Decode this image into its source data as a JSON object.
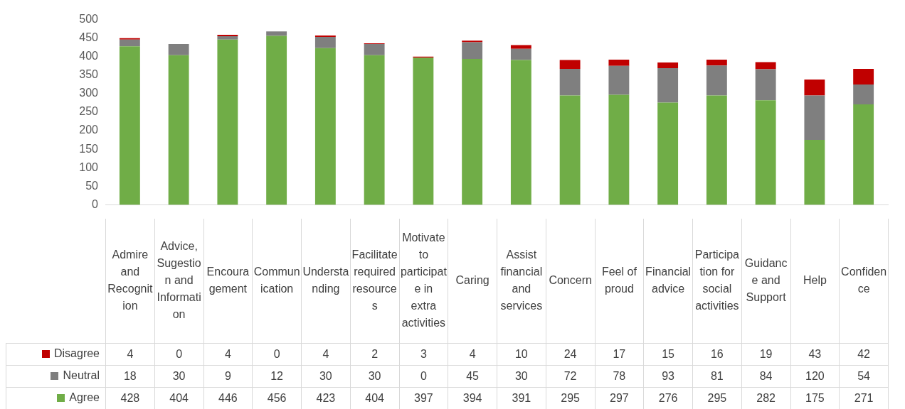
{
  "chart_data": {
    "type": "bar",
    "stacked": true,
    "categories": [
      "Admire and Recognition",
      "Advice, Sugestion and Information",
      "Encouragement",
      "Communication",
      "Understanding",
      "Facilitate required resources",
      "Motivate to participate in extra activities",
      "Caring",
      "Assist financial and services",
      "Concern",
      "Feel of proud",
      "Financial advice",
      "Participation for social activities",
      "Guidance and Support",
      "Help",
      "Confidence"
    ],
    "series": [
      {
        "name": "Agree",
        "color": "#70ad47",
        "values": [
          428,
          404,
          446,
          456,
          423,
          404,
          397,
          394,
          391,
          295,
          297,
          276,
          295,
          282,
          175,
          271
        ]
      },
      {
        "name": "Neutral",
        "color": "#7f7f7f",
        "values": [
          18,
          30,
          9,
          12,
          30,
          30,
          0,
          45,
          30,
          72,
          78,
          93,
          81,
          84,
          120,
          54
        ]
      },
      {
        "name": "Disagree",
        "color": "#c00000",
        "values": [
          4,
          0,
          4,
          0,
          4,
          2,
          3,
          4,
          10,
          24,
          17,
          15,
          16,
          19,
          43,
          42
        ]
      }
    ],
    "ylim": [
      0,
      500
    ],
    "yticks": [
      0,
      50,
      100,
      150,
      200,
      250,
      300,
      350,
      400,
      450,
      500
    ],
    "grid": false,
    "legend": "bottom",
    "data_labels": true
  }
}
